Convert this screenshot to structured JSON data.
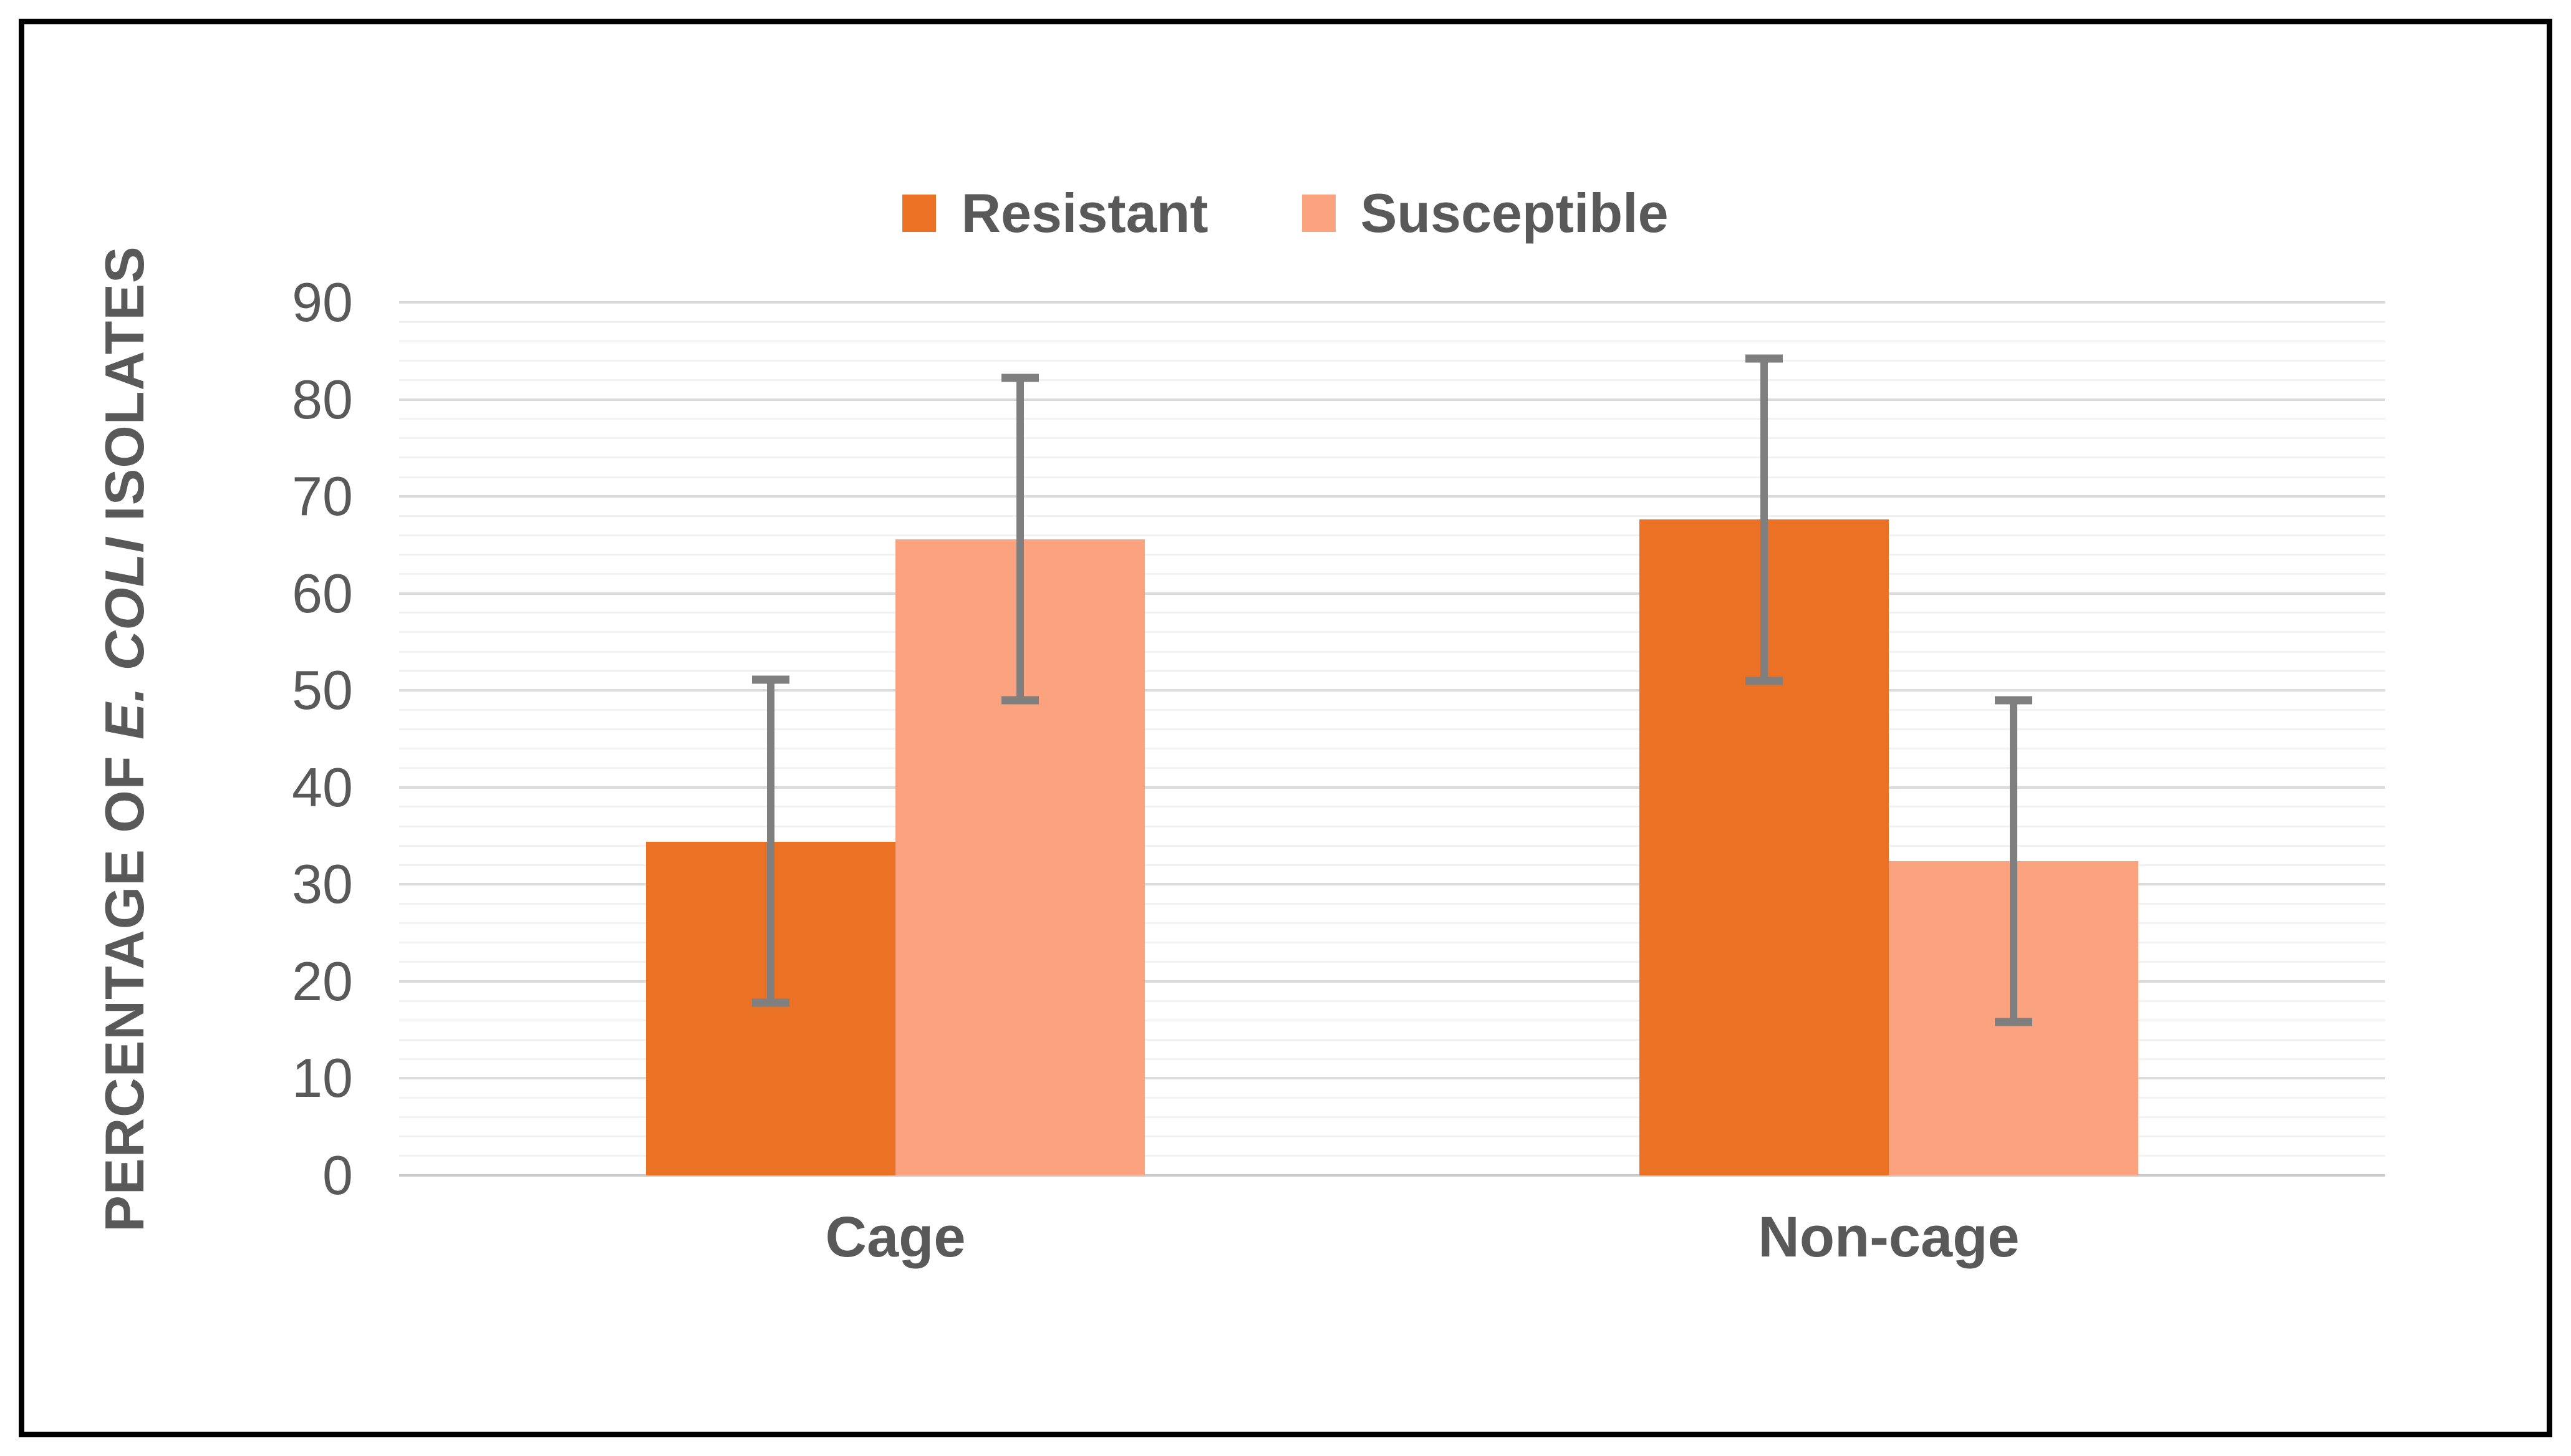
{
  "legend": {
    "items": [
      {
        "label": "Resistant",
        "color": "#EB7125"
      },
      {
        "label": "Susceptible",
        "color": "#FBA27E"
      }
    ]
  },
  "y_axis": {
    "title_prefix": "PERCENTAGE OF ",
    "title_italic": "E. COLI",
    "title_suffix": " ISOLATES",
    "ticks": [
      0,
      10,
      20,
      30,
      40,
      50,
      60,
      70,
      80,
      90
    ]
  },
  "palette": {
    "resistant": "#EB7125",
    "susceptible": "#FBA27E",
    "error_bar": "#7F7F7F",
    "text": "#595959",
    "grid_minor": "#F2F2F2",
    "grid_major": "#DBDBDB",
    "border": "#000000"
  },
  "chart_data": {
    "type": "bar",
    "title": "",
    "categories": [
      "Cage",
      "Non-cage"
    ],
    "series": [
      {
        "name": "Resistant",
        "color": "#EB7125",
        "values": [
          34.4,
          67.6
        ],
        "error_low": [
          17.8,
          51.0
        ],
        "error_high": [
          51.1,
          84.2
        ]
      },
      {
        "name": "Susceptible",
        "color": "#FBA27E",
        "values": [
          65.6,
          32.4
        ],
        "error_low": [
          49.0,
          15.8
        ],
        "error_high": [
          82.2,
          49.0
        ]
      }
    ],
    "xlabel": "",
    "ylabel": "PERCENTAGE OF E. COLI ISOLATES",
    "ylim": [
      0,
      90
    ],
    "grid": {
      "major_step": 10,
      "minor_step": 2,
      "grid_on": true
    },
    "legend_position": "top-center",
    "error_bars": true
  }
}
